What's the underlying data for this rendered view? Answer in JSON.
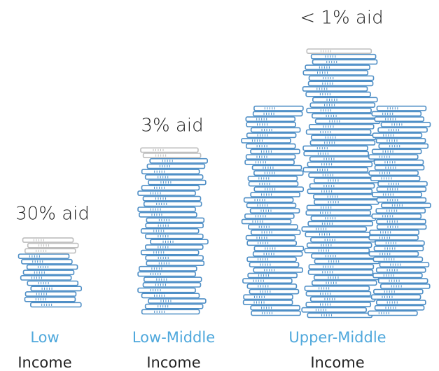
{
  "groups": [
    {
      "aid": "30% aid",
      "name_line1": "Low",
      "name_line2": "Income"
    },
    {
      "aid": "3% aid",
      "name_line1": "Low-Middle",
      "name_line2": "Income"
    },
    {
      "aid": "< 1% aid",
      "name_line1": "Upper-Middle",
      "name_line2": "Income"
    }
  ]
}
